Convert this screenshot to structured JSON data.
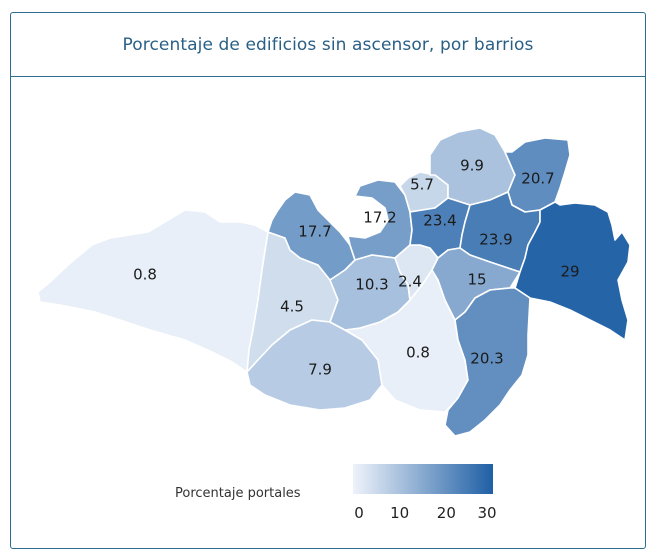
{
  "title": "Porcentaje de edificios sin ascensor, por barrios",
  "chart_data": {
    "type": "choropleth",
    "title": "Porcentaje de edificios sin ascensor, por barrios",
    "regions": [
      {
        "id": "west",
        "value": 0.8,
        "label": "0.8"
      },
      {
        "id": "southwest-central",
        "value": 4.5,
        "label": "4.5"
      },
      {
        "id": "south",
        "value": 7.9,
        "label": "7.9"
      },
      {
        "id": "south-central",
        "value": 0.8,
        "label": "0.8"
      },
      {
        "id": "north-west-central",
        "value": 17.7,
        "label": "17.7"
      },
      {
        "id": "center-north-loop",
        "value": 17.2,
        "label": "17.2"
      },
      {
        "id": "center",
        "value": 10.3,
        "label": "10.3"
      },
      {
        "id": "center-small",
        "value": 2.4,
        "label": "2.4"
      },
      {
        "id": "north-small",
        "value": 5.7,
        "label": "5.7"
      },
      {
        "id": "north",
        "value": 9.9,
        "label": "9.9"
      },
      {
        "id": "north-east",
        "value": 20.7,
        "label": "20.7"
      },
      {
        "id": "center-north",
        "value": 23.4,
        "label": "23.4"
      },
      {
        "id": "center-east",
        "value": 23.9,
        "label": "23.9"
      },
      {
        "id": "east-central",
        "value": 15,
        "label": "15"
      },
      {
        "id": "east",
        "value": 29,
        "label": "29"
      },
      {
        "id": "south-east",
        "value": 20.3,
        "label": "20.3"
      }
    ],
    "legend": {
      "title": "Porcentaje portales",
      "min": 0,
      "max": 30,
      "ticks": [
        "0",
        "10",
        "20",
        "30"
      ],
      "color_low": "#eef3fa",
      "color_high": "#1f5fa5"
    }
  }
}
